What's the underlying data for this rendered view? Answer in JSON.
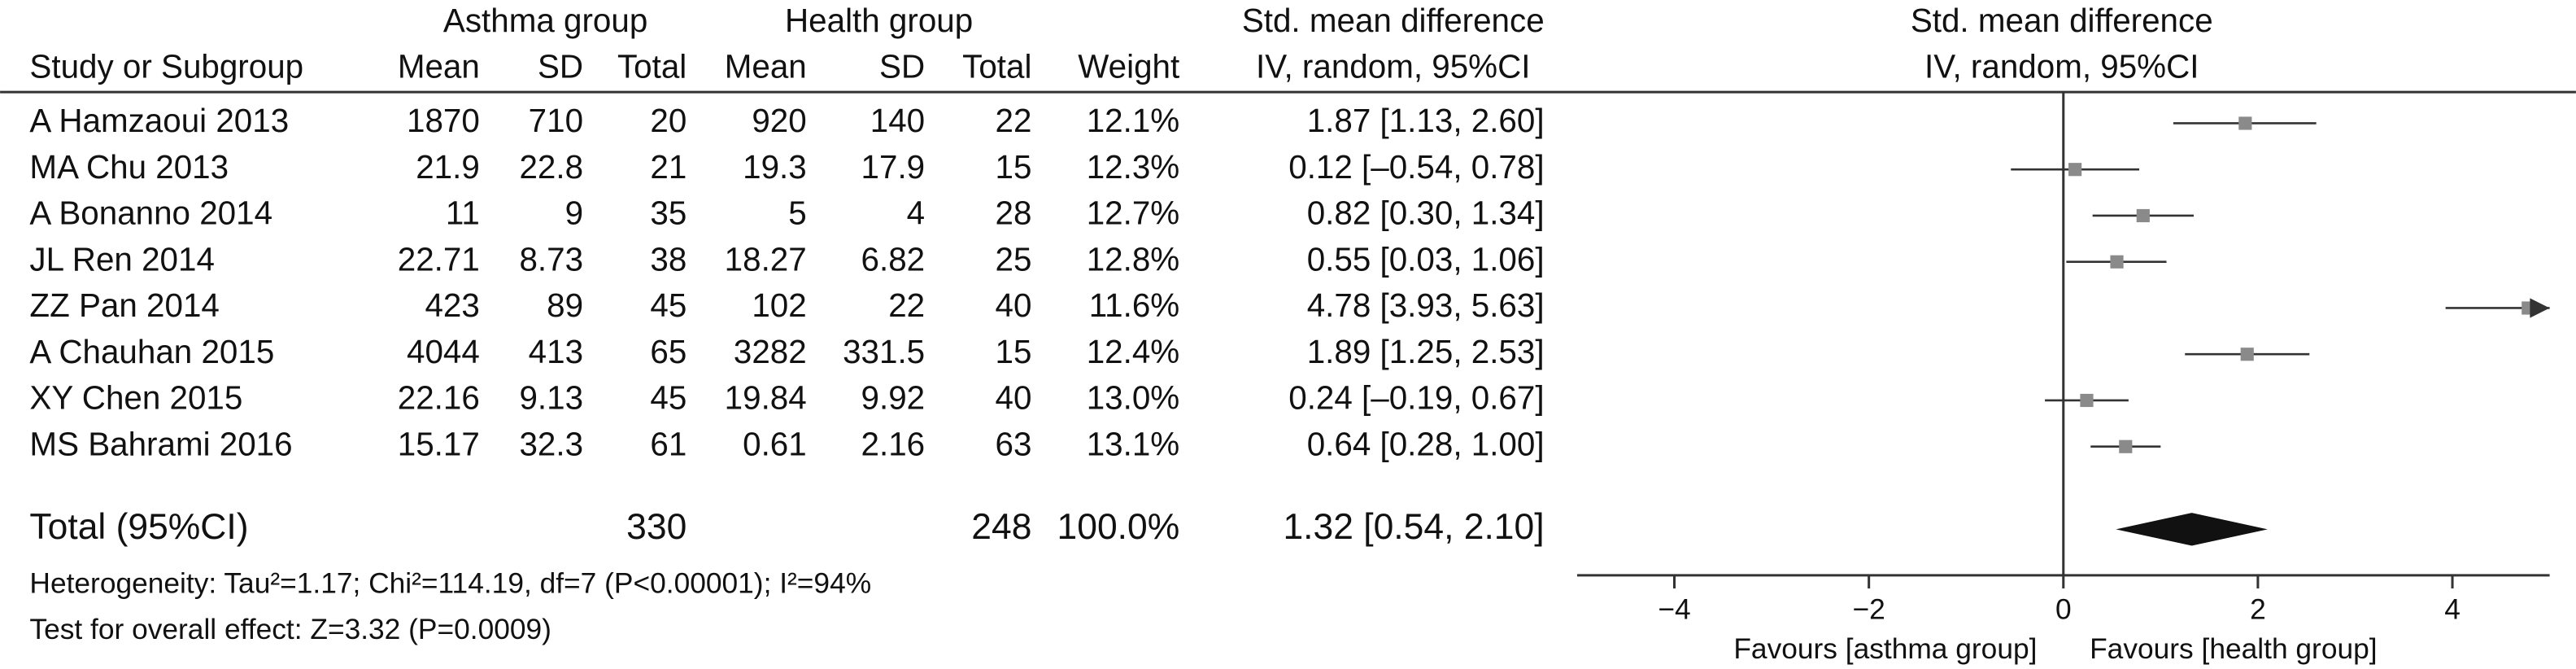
{
  "table": {
    "group_headers": [
      "Asthma group",
      "Health group"
    ],
    "headers": [
      "Study or Subgroup",
      "Mean",
      "SD",
      "Total",
      "Mean",
      "SD",
      "Total",
      "Weight"
    ],
    "effect_header": [
      "Std. mean difference",
      "IV, random, 95%CI"
    ],
    "rows": [
      [
        "A Hamzaoui 2013",
        "1870",
        "710",
        "20",
        "920",
        "140",
        "22",
        "12.1%",
        "1.87 [1.13, 2.60]"
      ],
      [
        "MA Chu 2013",
        "21.9",
        "22.8",
        "21",
        "19.3",
        "17.9",
        "15",
        "12.3%",
        "0.12 [–0.54, 0.78]"
      ],
      [
        "A Bonanno 2014",
        "11",
        "9",
        "35",
        "5",
        "4",
        "28",
        "12.7%",
        "0.82 [0.30, 1.34]"
      ],
      [
        "JL Ren 2014",
        "22.71",
        "8.73",
        "38",
        "18.27",
        "6.82",
        "25",
        "12.8%",
        "0.55 [0.03, 1.06]"
      ],
      [
        "ZZ Pan 2014",
        "423",
        "89",
        "45",
        "102",
        "22",
        "40",
        "11.6%",
        "4.78 [3.93, 5.63]"
      ],
      [
        "A Chauhan 2015",
        "4044",
        "413",
        "65",
        "3282",
        "331.5",
        "15",
        "12.4%",
        "1.89 [1.25, 2.53]"
      ],
      [
        "XY Chen 2015",
        "22.16",
        "9.13",
        "45",
        "19.84",
        "9.92",
        "40",
        "13.0%",
        "0.24 [–0.19, 0.67]"
      ],
      [
        "MS Bahrami 2016",
        "15.17",
        "32.3",
        "61",
        "0.61",
        "2.16",
        "63",
        "13.1%",
        "0.64 [0.28, 1.00]"
      ]
    ],
    "total": {
      "label": "Total (95%CI)",
      "asthma_total": "330",
      "health_total": "248",
      "weight": "100.0%",
      "ci": "1.32 [0.54, 2.10]"
    },
    "heterogeneity": "Heterogeneity: Tau²=1.17; Chi²=114.19, df=7 (P<0.00001); I²=94%",
    "overall_effect": "Test for overall effect: Z=3.32 (P=0.0009)"
  },
  "chart_data": {
    "type": "forest",
    "title": "Std. mean difference",
    "subtitle": "IV, random, 95%CI",
    "values": [
      1.87,
      0.12,
      0.82,
      0.55,
      4.78,
      1.89,
      0.24,
      0.64
    ],
    "lower": [
      1.13,
      -0.54,
      0.3,
      0.03,
      3.93,
      1.25,
      -0.19,
      0.28
    ],
    "upper": [
      2.6,
      0.78,
      1.34,
      1.06,
      5.63,
      2.53,
      0.67,
      1.0
    ],
    "summary": {
      "value": 1.32,
      "lower": 0.54,
      "upper": 2.1
    },
    "xlim": [
      -5,
      5
    ],
    "xticks": [
      {
        "value": -4,
        "label": "−4"
      },
      {
        "value": -2,
        "label": "−2"
      },
      0,
      2,
      4
    ],
    "xlabel_left": "Favours [asthma group]",
    "xlabel_right": "Favours [health group]",
    "marker_color": "#8a8a8a",
    "line_color": "#333333",
    "summary_color": "#111111"
  }
}
